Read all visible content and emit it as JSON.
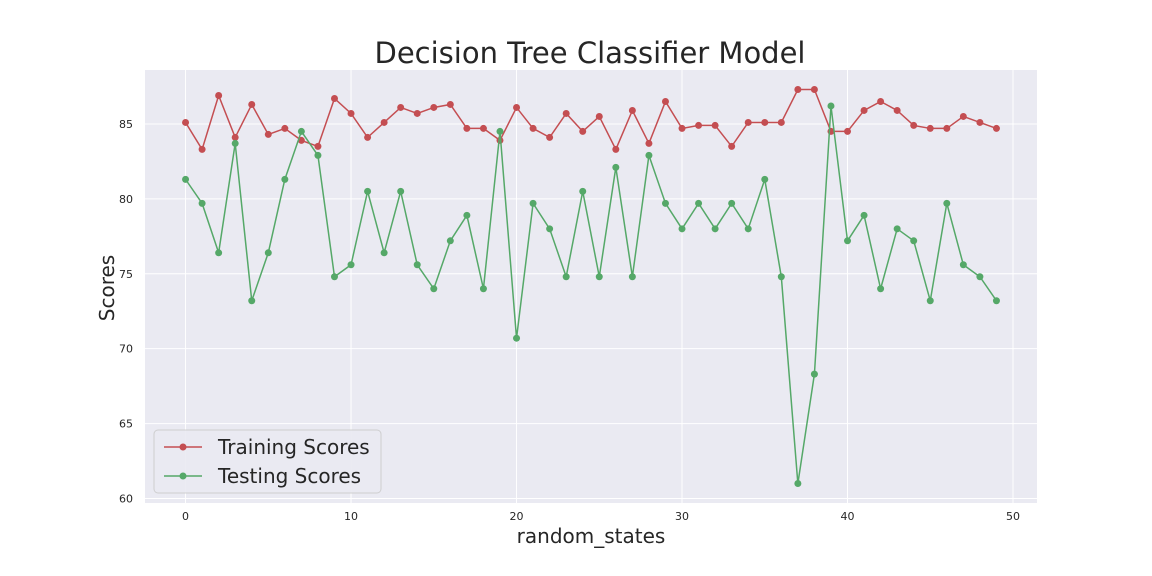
{
  "chart_data": {
    "type": "line",
    "title": "Decision Tree Classifier Model",
    "xlabel": "random_states",
    "ylabel": "Scores",
    "xlim": [
      -2.45,
      51.45
    ],
    "ylim": [
      59.7,
      88.6
    ],
    "xticks": [
      0,
      10,
      20,
      30,
      40,
      50
    ],
    "yticks": [
      60,
      65,
      70,
      75,
      80,
      85
    ],
    "grid": true,
    "legend_position": "lower-left",
    "x": [
      0,
      1,
      2,
      3,
      4,
      5,
      6,
      7,
      8,
      9,
      10,
      11,
      12,
      13,
      14,
      15,
      16,
      17,
      18,
      19,
      20,
      21,
      22,
      23,
      24,
      25,
      26,
      27,
      28,
      29,
      30,
      31,
      32,
      33,
      34,
      35,
      36,
      37,
      38,
      39,
      40,
      41,
      42,
      43,
      44,
      45,
      46,
      47,
      48,
      49
    ],
    "series": [
      {
        "name": "Training Scores",
        "color": "#c44e52",
        "values": [
          85.1,
          83.3,
          86.9,
          84.1,
          86.3,
          84.3,
          84.7,
          83.9,
          83.5,
          86.7,
          85.7,
          84.1,
          85.1,
          86.1,
          85.7,
          86.1,
          86.3,
          84.7,
          84.7,
          83.9,
          86.1,
          84.7,
          84.1,
          85.7,
          84.5,
          85.5,
          83.3,
          85.9,
          83.7,
          86.5,
          84.7,
          84.9,
          84.9,
          83.5,
          85.1,
          85.1,
          85.1,
          87.3,
          87.3,
          84.5,
          84.5,
          85.9,
          86.5,
          85.9,
          84.9,
          84.7,
          84.7,
          85.5,
          85.1,
          84.7
        ]
      },
      {
        "name": "Testing Scores",
        "color": "#55a868",
        "values": [
          81.3,
          79.7,
          76.4,
          83.7,
          73.2,
          76.4,
          81.3,
          84.5,
          82.9,
          74.8,
          75.6,
          80.5,
          76.4,
          80.5,
          75.6,
          74.0,
          77.2,
          78.9,
          74.0,
          84.5,
          70.7,
          79.7,
          78.0,
          74.8,
          80.5,
          74.8,
          82.1,
          74.8,
          82.9,
          79.7,
          78.0,
          79.7,
          78.0,
          79.7,
          78.0,
          81.3,
          74.8,
          61.0,
          68.3,
          86.2,
          77.2,
          78.9,
          74.0,
          78.0,
          77.2,
          73.2,
          79.7,
          75.6,
          74.8,
          73.2
        ]
      }
    ]
  }
}
